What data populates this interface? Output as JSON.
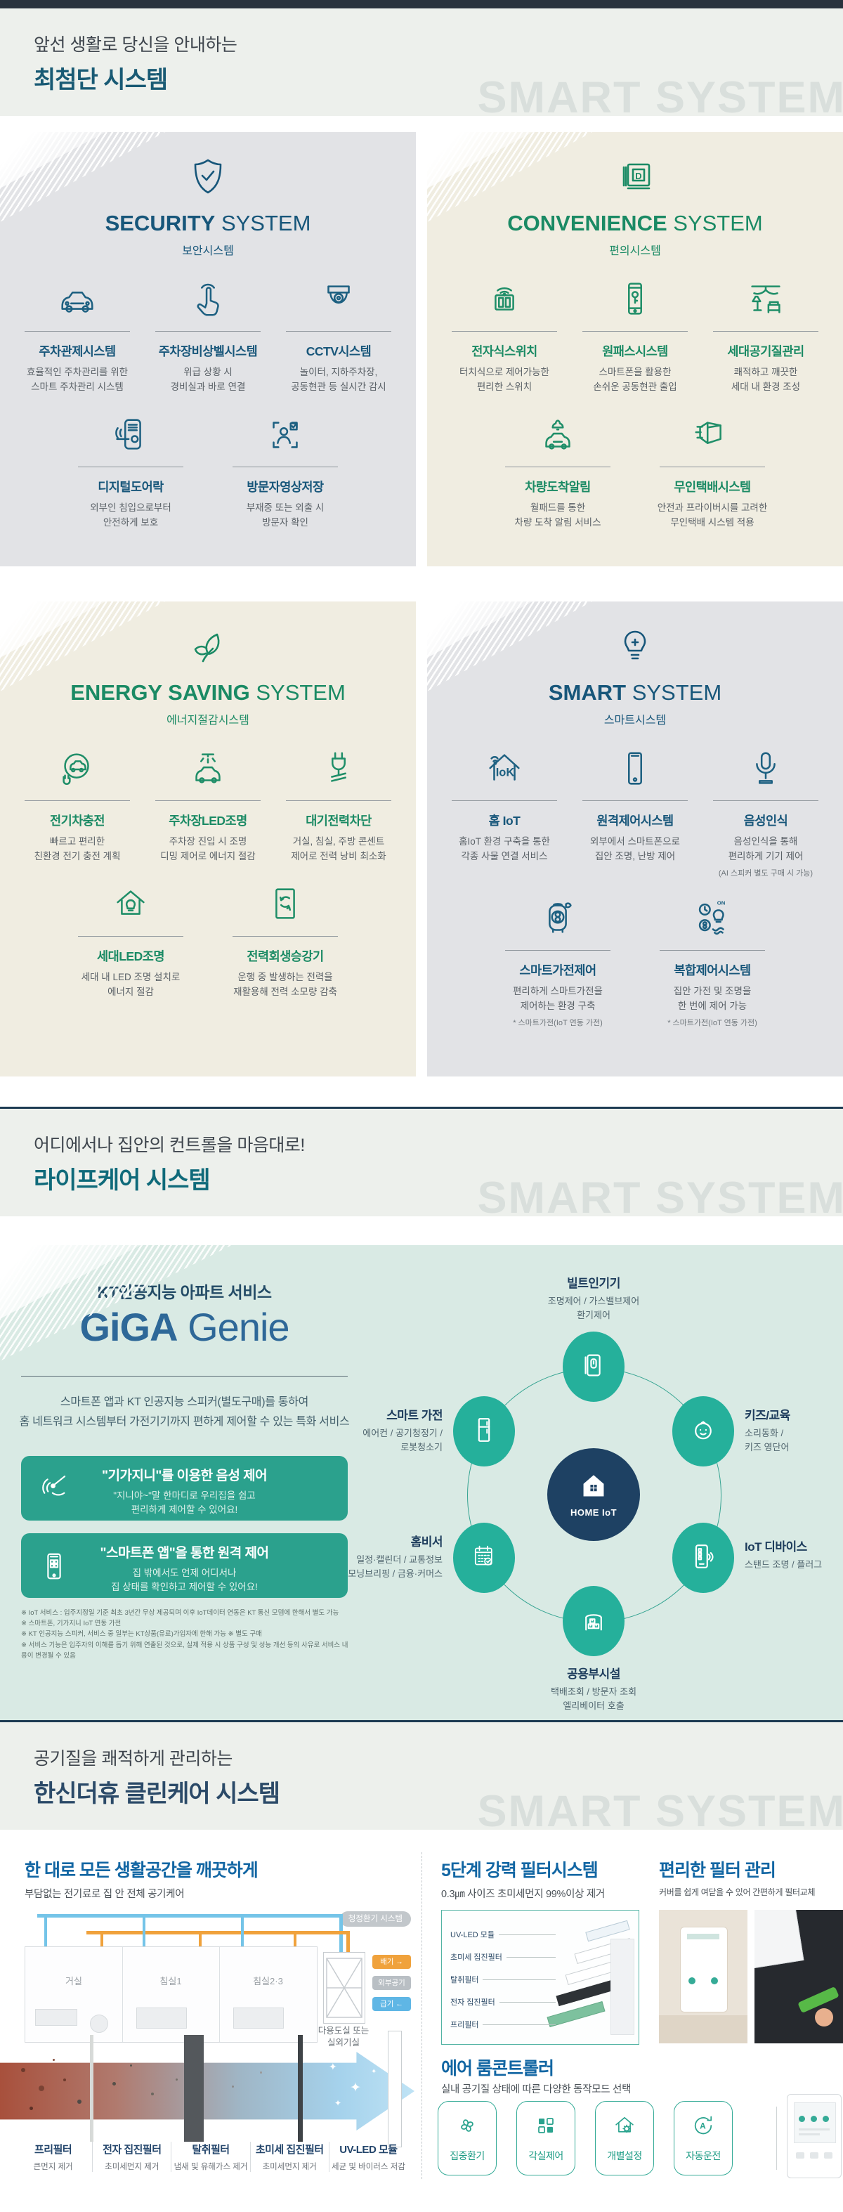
{
  "colors": {
    "accent_blue": "#17567a",
    "accent_green": "#1a8a64",
    "teal": "#2ba18d",
    "navy": "#1e4163",
    "orange": "#f0a23c",
    "sky": "#5fb6e5",
    "watermark": "#d9dfdc"
  },
  "header1": {
    "eyebrow": "앞선 생활로 당신을 안내하는",
    "title": "최첨단 시스템",
    "title_color": "#195a74",
    "watermark": "SMART SYSTEM"
  },
  "header2": {
    "eyebrow": "어디에서나 집안의 컨트롤을 마음대로!",
    "title": "라이프케어 시스템",
    "title_color": "#0f6a7a",
    "watermark": "SMART SYSTEM"
  },
  "header3": {
    "eyebrow": "공기질을 쾌적하게 관리하는",
    "title": "한신더휴 클린케어 시스템",
    "title_color": "#2b4a68",
    "watermark": "SMART SYSTEM"
  },
  "cards": [
    {
      "theme": "blue",
      "height": "h1",
      "hero_icon": "shield",
      "title_strong": "SECURITY",
      "title_rest": "SYSTEM",
      "subtitle": "보안시스템",
      "rows": [
        [
          {
            "icon": "car",
            "label": "주차관제시스템",
            "desc": [
              "효율적인 주차관리를 위한",
              "스마트 주차관리 시스템"
            ]
          },
          {
            "icon": "touch",
            "label": "주차장비상벨시스템",
            "desc": [
              "위급 상황 시",
              "경비실과 바로 연결"
            ]
          },
          {
            "icon": "cctv",
            "label": "CCTV시스템",
            "desc": [
              "놀이터, 지하주차장,",
              "공동현관 등 실시간 감시"
            ]
          }
        ],
        [
          {
            "icon": "doorlock",
            "label": "디지털도어락",
            "desc": [
              "외부인 침입으로부터",
              "안전하게 보호"
            ]
          },
          {
            "icon": "visitor",
            "label": "방문자영상저장",
            "desc": [
              "부재중 또는 외출 시",
              "방문자 확인"
            ]
          }
        ]
      ]
    },
    {
      "theme": "cream",
      "height": "h1",
      "hero_icon": "panel-d",
      "title_strong": "CONVENIENCE",
      "title_rest": "SYSTEM",
      "subtitle": "편의시스템",
      "rows": [
        [
          {
            "icon": "switch-wifi",
            "label": "전자식스위치",
            "desc": [
              "터치식으로 제어가능한",
              "편리한 스위치"
            ]
          },
          {
            "icon": "phone-key",
            "label": "원패스시스템",
            "desc": [
              "스마트폰을 활용한",
              "손쉬운 공동현관 출입"
            ]
          },
          {
            "icon": "room-air",
            "label": "세대공기질관리",
            "desc": [
              "쾌적하고 깨끗한",
              "세대 내 환경 조성"
            ]
          }
        ],
        [
          {
            "icon": "car-bell",
            "label": "차량도착알림",
            "desc": [
              "월패드를 통한",
              "차량 도착 알림 서비스"
            ]
          },
          {
            "icon": "parcel",
            "label": "무인택배시스템",
            "desc": [
              "안전과 프라이버시를 고려한",
              "무인택배 시스템 적용"
            ]
          }
        ]
      ]
    },
    {
      "theme": "cream",
      "height": "h2",
      "hero_icon": "leaf",
      "title_strong": "ENERGY SAVING",
      "title_rest": "SYSTEM",
      "subtitle": "에너지절감시스템",
      "rows": [
        [
          {
            "icon": "ev-charge",
            "label": "전기차충전",
            "desc": [
              "빠르고 편리한",
              "친환경 전기 충전 계획"
            ]
          },
          {
            "icon": "car-led",
            "label": "주차장LED조명",
            "desc": [
              "주차장 진입 시 조명",
              "디밍 제어로 에너지 절감"
            ]
          },
          {
            "icon": "plug-cut",
            "label": "대기전력차단",
            "desc": [
              "거실, 침실, 주방 콘센트",
              "제어로 전력 낭비 최소화"
            ]
          }
        ],
        [
          {
            "icon": "house-led",
            "label": "세대LED조명",
            "desc": [
              "세대 내 LED 조명 설치로",
              "에너지 절감"
            ]
          },
          {
            "icon": "elevator",
            "label": "전력회생승강기",
            "desc": [
              "운행 중 발생하는 전력을",
              "재활용해 전력 소모량 감축"
            ]
          }
        ]
      ]
    },
    {
      "theme": "blue",
      "height": "h2",
      "hero_icon": "bulb-smart",
      "title_strong": "SMART",
      "title_rest": "SYSTEM",
      "subtitle": "스마트시스템",
      "rows": [
        [
          {
            "icon": "house-iok",
            "label": "홈 IoT",
            "desc": [
              "홈IoT 환경 구축을 통한",
              "각종 사물 연결 서비스"
            ]
          },
          {
            "icon": "smartphone",
            "label": "원격제어시스템",
            "desc": [
              "외부에서 스마트폰으로",
              "집안 조명, 난방 제어"
            ]
          },
          {
            "icon": "mic",
            "label": "음성인식",
            "desc": [
              "음성인식을 통해",
              "편리하게 기기 제어"
            ],
            "note": "(AI 스피커 별도 구매 시 가능)"
          }
        ],
        [
          {
            "icon": "purifier",
            "label": "스마트가전제어",
            "desc": [
              "편리하게 스마트가전을",
              "제어하는 환경 구축"
            ],
            "note": "* 스마트가전(IoT 연동 가전)"
          },
          {
            "icon": "multi-ctrl",
            "label": "복합제어시스템",
            "desc": [
              "집안 가전 및 조명을",
              "한 번에 제어 가능"
            ],
            "note": "* 스마트가전(IoT 연동 가전)"
          }
        ]
      ]
    }
  ],
  "giga": {
    "eyebrow": "KT인공지능 아파트 서비스",
    "logo_strong": "GiGA",
    "logo_rest": "Genie",
    "desc": [
      "스마트폰 앱과 KT 인공지능 스피커(별도구매)를 통하여",
      "홈 네트워크 시스템부터 가전기기까지 편하게 제어할 수 있는 특화 서비스"
    ],
    "boxes": [
      {
        "icon": "voice",
        "title": "\"기가지니\"를 이용한 음성 제어",
        "desc": [
          "\"지니야~\"말 한마디로 우리집을 쉽고",
          "편리하게 제어할 수 있어요!"
        ]
      },
      {
        "icon": "app-phone",
        "title": "\"스마트폰 앱\"을 통한 원격 제어",
        "desc": [
          "집 밖에서도 언제 어디서나",
          "집 상태를 확인하고 제어할 수 있어요!"
        ]
      }
    ],
    "notes": [
      "※ IoT 서비스 : 입주지정일 기준 최초 3년간 무상 제공되며 이후 IoT데이터 연동은 KT 통신 모뎀에 한해서 별도 가능",
      "※ 스마트폰, 기가지니 IoT 연동 가전",
      "※ KT 인공지능 스피커, 서비스 중 일부는 KT상품(유료)가입자에 한해 가능 ※ 별도 구매",
      "※ 서비스 기능은 입주자의 이해를 돕기 위해 연출된 것으로, 실제 적용 시 상품 구성 및 성능 개선 등의 사유로 서비스 내용이 변경될 수 있음"
    ],
    "diagram": {
      "center": {
        "icon": "home-fill",
        "label": "HOME IoT"
      },
      "nodes": [
        {
          "pos": "top",
          "icon": "wallpad",
          "name": "빌트인기기",
          "items": [
            "조명제어 / 가스밸브제어",
            "환기제어"
          ]
        },
        {
          "pos": "ul",
          "icon": "fridge",
          "name": "스마트 가전",
          "items": [
            "에어컨 / 공기청정기 /",
            "로봇청소기"
          ]
        },
        {
          "pos": "ur",
          "icon": "baby",
          "name": "키즈/교육",
          "items": [
            "소리동화 /",
            "키즈 영단어"
          ]
        },
        {
          "pos": "ll",
          "icon": "calendar",
          "name": "홈비서",
          "items": [
            "일정·캘린더 / 교통정보",
            "모닝브리핑 / 금융·커머스"
          ]
        },
        {
          "pos": "lr",
          "icon": "phone-wifi",
          "name": "IoT 디바이스",
          "items": [
            "스탠드 조명 / 플러그"
          ]
        },
        {
          "pos": "bottom",
          "icon": "boxes",
          "name": "공용부시설",
          "items": [
            "택배조회 / 방문자 조회",
            "엘리베이터 호출"
          ]
        }
      ]
    }
  },
  "clean": {
    "left": {
      "title": "한 대로 모든 생활공간을 깨끗하게",
      "sub": "부담없는 전기료로 집 안 전체 공기케어",
      "diagram": {
        "badge": "청정환기 시스템",
        "rooms": [
          "거실",
          "침실1",
          "침실2·3"
        ],
        "flow_badges": [
          {
            "label": "배기 →",
            "color": "#f0a23c"
          },
          {
            "label": "외부공기",
            "color": "#b9bfc4"
          },
          {
            "label": "급기 ←",
            "color": "#5fb6e5"
          }
        ],
        "unit_caption": [
          "다용도실 또는",
          "실외기실"
        ]
      },
      "filters": [
        {
          "name": "프리필터",
          "desc": "큰먼지 제거"
        },
        {
          "name": "전자 집진필터",
          "desc": "초미세먼지 제거"
        },
        {
          "name": "탈취필터",
          "desc": "냄새 및 유해가스 제거"
        },
        {
          "name": "초미세 집진필터",
          "desc": "초미세먼지 제거"
        },
        {
          "name": "UV-LED 모듈",
          "desc": "세균 및 바이러스 저감"
        }
      ]
    },
    "filter_system": {
      "title": "5단계 강력 필터시스템",
      "sub": "0.3㎛ 사이즈 초미세먼지 99%이상 제거",
      "stages": [
        "UV-LED 모듈",
        "초미세 집진필터",
        "탈취필터",
        "전자 집진필터",
        "프리필터"
      ]
    },
    "filter_care": {
      "title": "편리한 필터 관리",
      "sub": "커버를 쉽게 여닫을 수 있어 간편하게 필터교체"
    },
    "controller": {
      "title": "에어 룸콘트롤러",
      "sub": "실내 공기질 상태에 따른 다양한 동작모드 선택",
      "modes": [
        {
          "icon": "fan",
          "label": "집중환기"
        },
        {
          "icon": "grid",
          "label": "각실제어"
        },
        {
          "icon": "house-gear",
          "label": "개별설정"
        },
        {
          "icon": "auto-a",
          "label": "자동운전"
        }
      ]
    }
  }
}
